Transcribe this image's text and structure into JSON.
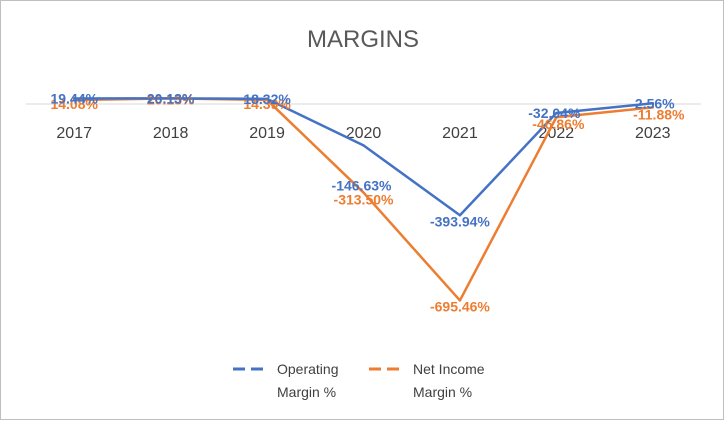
{
  "chart_data": {
    "type": "line",
    "title": "MARGINS",
    "categories": [
      "2017",
      "2018",
      "2019",
      "2020",
      "2021",
      "2022",
      "2023"
    ],
    "series": [
      {
        "name": "Operating Margin %",
        "color": "#4472c4",
        "values": [
          19.44,
          20.13,
          18.32,
          -146.63,
          -393.94,
          -32.04,
          2.56
        ],
        "labels": [
          "19.44%",
          "20.13%",
          "18.32%",
          "-146.63%",
          "-393.94%",
          "-32.04%",
          "2.56%"
        ]
      },
      {
        "name": "Net Income Margin %",
        "color": "#ed7d31",
        "values": [
          14.08,
          20.13,
          14.39,
          -313.5,
          -695.46,
          -46.86,
          -11.88
        ],
        "labels": [
          "14.08%",
          "20.13%",
          "14.39%",
          "-313.50%",
          "-695.46%",
          "-46.86%",
          "-11.88%"
        ]
      }
    ],
    "legend": {
      "position": "bottom",
      "items": [
        {
          "line1": "Operating",
          "line2": "Margin %"
        },
        {
          "line1": "Net Income",
          "line2": "Margin %"
        }
      ]
    },
    "gridlines": false
  }
}
